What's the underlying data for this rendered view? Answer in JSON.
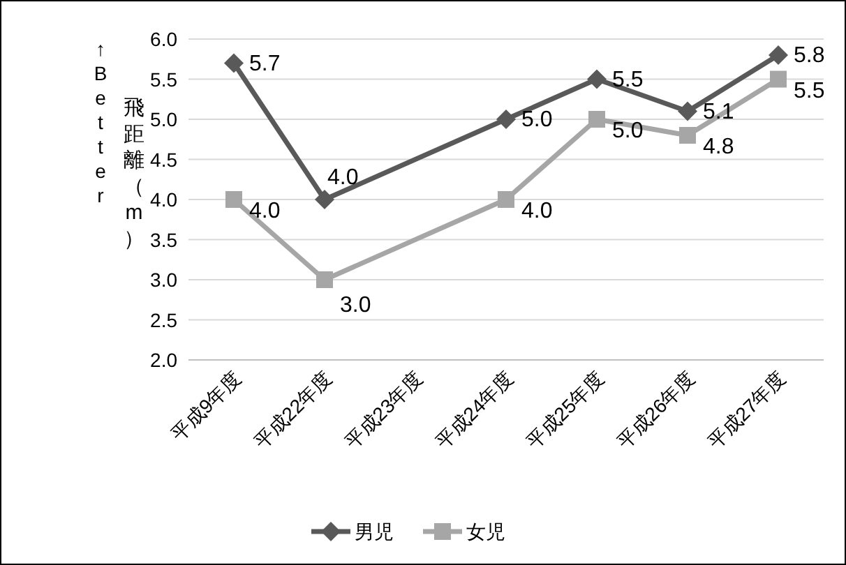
{
  "chart_data": {
    "type": "line",
    "ylabel": "飛距離（m）",
    "annotations": [
      "↑Better"
    ],
    "categories": [
      "平成9年度",
      "平成22年度",
      "平成23年度",
      "平成24年度",
      "平成25年度",
      "平成26年度",
      "平成27年度"
    ],
    "series": [
      {
        "name": "男児",
        "color": "#595959",
        "marker": "diamond",
        "values": [
          5.7,
          4.0,
          null,
          5.0,
          5.5,
          5.1,
          5.8
        ],
        "value_labels": [
          "5.7",
          "4.0",
          null,
          "5.0",
          "5.5",
          "5.1",
          "5.8"
        ]
      },
      {
        "name": "女児",
        "color": "#a6a6a6",
        "marker": "square",
        "values": [
          4.0,
          3.0,
          null,
          4.0,
          5.0,
          4.8,
          5.5
        ],
        "value_labels": [
          "4.0",
          "3.0",
          null,
          "4.0",
          "5.0",
          "4.8",
          "5.5"
        ]
      }
    ],
    "ylim": [
      2.0,
      6.0
    ],
    "yticks": [
      {
        "value": 2,
        "label": "2.0"
      },
      {
        "value": 2.5,
        "label": "2.5"
      },
      {
        "value": 3,
        "label": "3.0"
      },
      {
        "value": 3.5,
        "label": "3.5"
      },
      {
        "value": 4,
        "label": "4.0"
      },
      {
        "value": 4.5,
        "label": "4.5"
      },
      {
        "value": 5,
        "label": "5.0"
      },
      {
        "value": 5.5,
        "label": "5.5"
      },
      {
        "value": 6,
        "label": "6.0"
      }
    ],
    "grid": "y",
    "legend": "bottom",
    "line_style": "solid"
  }
}
